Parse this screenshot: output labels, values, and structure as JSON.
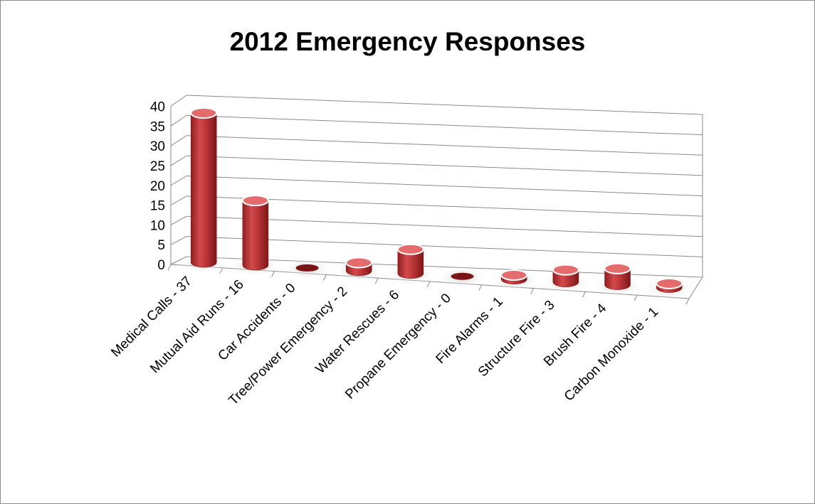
{
  "chart_data": {
    "type": "bar",
    "title": "2012 Emergency Responses",
    "categories": [
      "Medical Calls - 37",
      "Mutual Aid Runs - 16",
      "Car Accidents - 0",
      "Tree/Power Emergency - 2",
      "Water Rescues - 6",
      "Propane Emergency - 0",
      "Fire Alarms - 1",
      "Structure Fire - 3",
      "Brush Fire - 4",
      "Carbon Monoxide - 1"
    ],
    "values": [
      37,
      16,
      0,
      2,
      6,
      0,
      1,
      3,
      4,
      1
    ],
    "ylim": [
      0,
      40
    ],
    "yticks": [
      "0",
      "5",
      "10",
      "15",
      "20",
      "25",
      "30",
      "35",
      "40"
    ],
    "grid": true,
    "legend": "none",
    "bar_shape": "cylinder-3d",
    "colors": {
      "bar_body": "#c0393b",
      "bar_top": "#e46c6c",
      "bar_dark": "#8b1a1c",
      "zero_bar": "#7a1517",
      "gridline": "#8a8a8a",
      "shadow": "#d9d9d9"
    }
  }
}
